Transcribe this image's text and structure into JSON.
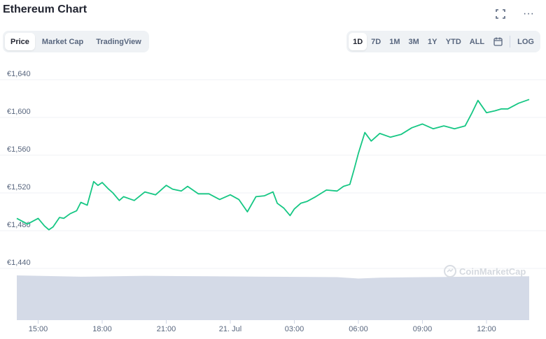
{
  "header": {
    "title": "Ethereum Chart",
    "icons": [
      "fullscreen-icon",
      "more-icon"
    ],
    "more_glyph": "···"
  },
  "tabs_left": [
    {
      "label": "Price",
      "active": true
    },
    {
      "label": "Market Cap",
      "active": false
    },
    {
      "label": "TradingView",
      "active": false
    }
  ],
  "tabs_right": [
    {
      "label": "1D",
      "active": true
    },
    {
      "label": "7D",
      "active": false
    },
    {
      "label": "1M",
      "active": false
    },
    {
      "label": "3M",
      "active": false
    },
    {
      "label": "1Y",
      "active": false
    },
    {
      "label": "YTD",
      "active": false
    },
    {
      "label": "ALL",
      "active": false
    }
  ],
  "calendar_icon": "calendar-icon",
  "log_label": "LOG",
  "watermark": "CoinMarketCap",
  "colors": {
    "line": "#16c784",
    "volume": "#cfd6e4",
    "grid": "#eff2f5",
    "axis_text": "#58667e"
  },
  "chart_data": {
    "type": "line",
    "title": "",
    "xlabel": "",
    "ylabel": "",
    "ylim": [
      1420,
      1650
    ],
    "y_ticks": [
      "€1,440",
      "€1,480",
      "€1,520",
      "€1,560",
      "€1,600",
      "€1,640"
    ],
    "y_tick_values": [
      1440,
      1480,
      1520,
      1560,
      1600,
      1640
    ],
    "x_ticks": [
      "15:00",
      "18:00",
      "21:00",
      "21. Jul",
      "03:00",
      "06:00",
      "09:00",
      "12:00"
    ],
    "x_tick_hours": [
      1,
      4,
      7,
      10,
      13,
      16,
      19,
      22
    ],
    "series": [
      {
        "hours": [
          0,
          0.5,
          1.0,
          1.3,
          1.5,
          1.7,
          2.0,
          2.2,
          2.5,
          2.8,
          3.0,
          3.3,
          3.6,
          3.8,
          4.0,
          4.3,
          4.5,
          4.8,
          5.0,
          5.5,
          6.0,
          6.5,
          7.0,
          7.3,
          7.7,
          8.0,
          8.5,
          9.0,
          9.5,
          10.0,
          10.4,
          10.8,
          11.2,
          11.6,
          12.0,
          12.2,
          12.5,
          12.8,
          13.0,
          13.3,
          13.6,
          14.0,
          14.5,
          15.0,
          15.3,
          15.6,
          15.8,
          16.0,
          16.3,
          16.6,
          17.0,
          17.5,
          18.0,
          18.5,
          19.0,
          19.5,
          20.0,
          20.5,
          21.0,
          21.3,
          21.6,
          22.0,
          22.4,
          22.7,
          23.0,
          23.5,
          24.0
        ],
        "values": [
          1493,
          1487,
          1493,
          1485,
          1481,
          1484,
          1494,
          1493,
          1498,
          1501,
          1510,
          1507,
          1532,
          1528,
          1531,
          1524,
          1520,
          1512,
          1516,
          1512,
          1521,
          1518,
          1528,
          1524,
          1522,
          1527,
          1519,
          1519,
          1513,
          1518,
          1513,
          1500,
          1516,
          1517,
          1521,
          1509,
          1504,
          1496,
          1503,
          1509,
          1511,
          1516,
          1523,
          1522,
          1527,
          1529,
          1545,
          1562,
          1584,
          1575,
          1583,
          1579,
          1582,
          1589,
          1593,
          1588,
          1591,
          1588,
          1591,
          1604,
          1618,
          1605,
          1607,
          1609,
          1609,
          1615,
          1619
        ]
      }
    ],
    "volume": {
      "hours": [
        0,
        3,
        6,
        9,
        12,
        15,
        16,
        17,
        19,
        21,
        24
      ],
      "values": [
        1.0,
        0.97,
        0.99,
        0.98,
        0.97,
        0.96,
        0.93,
        0.95,
        0.96,
        0.97,
        0.98
      ]
    }
  }
}
